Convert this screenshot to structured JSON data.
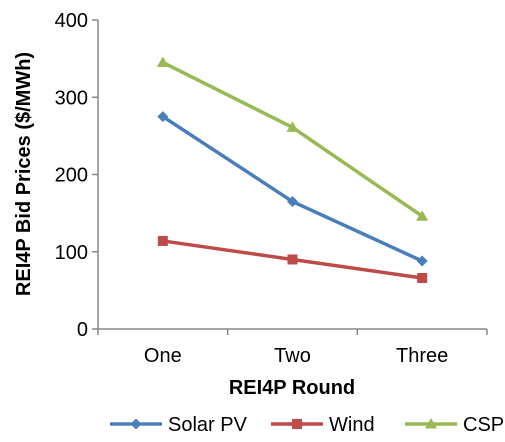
{
  "chart_data": {
    "type": "line",
    "title": "",
    "xlabel": "REI4P Round",
    "ylabel": "REI4P Bid Prices ($/MWh)",
    "categories": [
      "One",
      "Two",
      "Three"
    ],
    "ylim": [
      0,
      400
    ],
    "yticks": [
      0,
      100,
      200,
      300,
      400
    ],
    "grid": false,
    "legend_position": "bottom",
    "series": [
      {
        "name": "Solar PV",
        "values": [
          275,
          165,
          88
        ],
        "color": "#4a7ebb",
        "marker": "diamond"
      },
      {
        "name": "Wind",
        "values": [
          114,
          90,
          66
        ],
        "color": "#be4b48",
        "marker": "square"
      },
      {
        "name": "CSP",
        "values": [
          345,
          261,
          146
        ],
        "color": "#98b954",
        "marker": "triangle"
      }
    ]
  }
}
